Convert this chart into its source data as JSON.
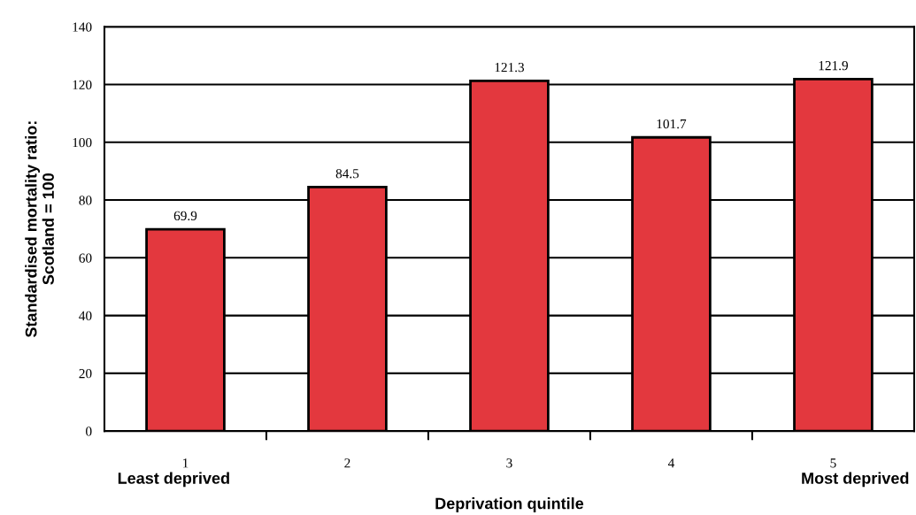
{
  "chart_data": {
    "type": "bar",
    "xlabel": "Deprivation quintile",
    "ylabel": "Standardised mortality ratio:\nScotland = 100",
    "categories": [
      "1",
      "2",
      "3",
      "4",
      "5"
    ],
    "values": [
      69.9,
      84.5,
      121.3,
      101.7,
      121.9
    ],
    "color": "#e3383e",
    "data_labels": true,
    "ylim": [
      0,
      140
    ],
    "yticks": [
      0,
      20,
      40,
      60,
      80,
      100,
      120,
      140
    ],
    "grid": "y",
    "annotations": [
      "Least deprived",
      "Most deprived"
    ]
  }
}
